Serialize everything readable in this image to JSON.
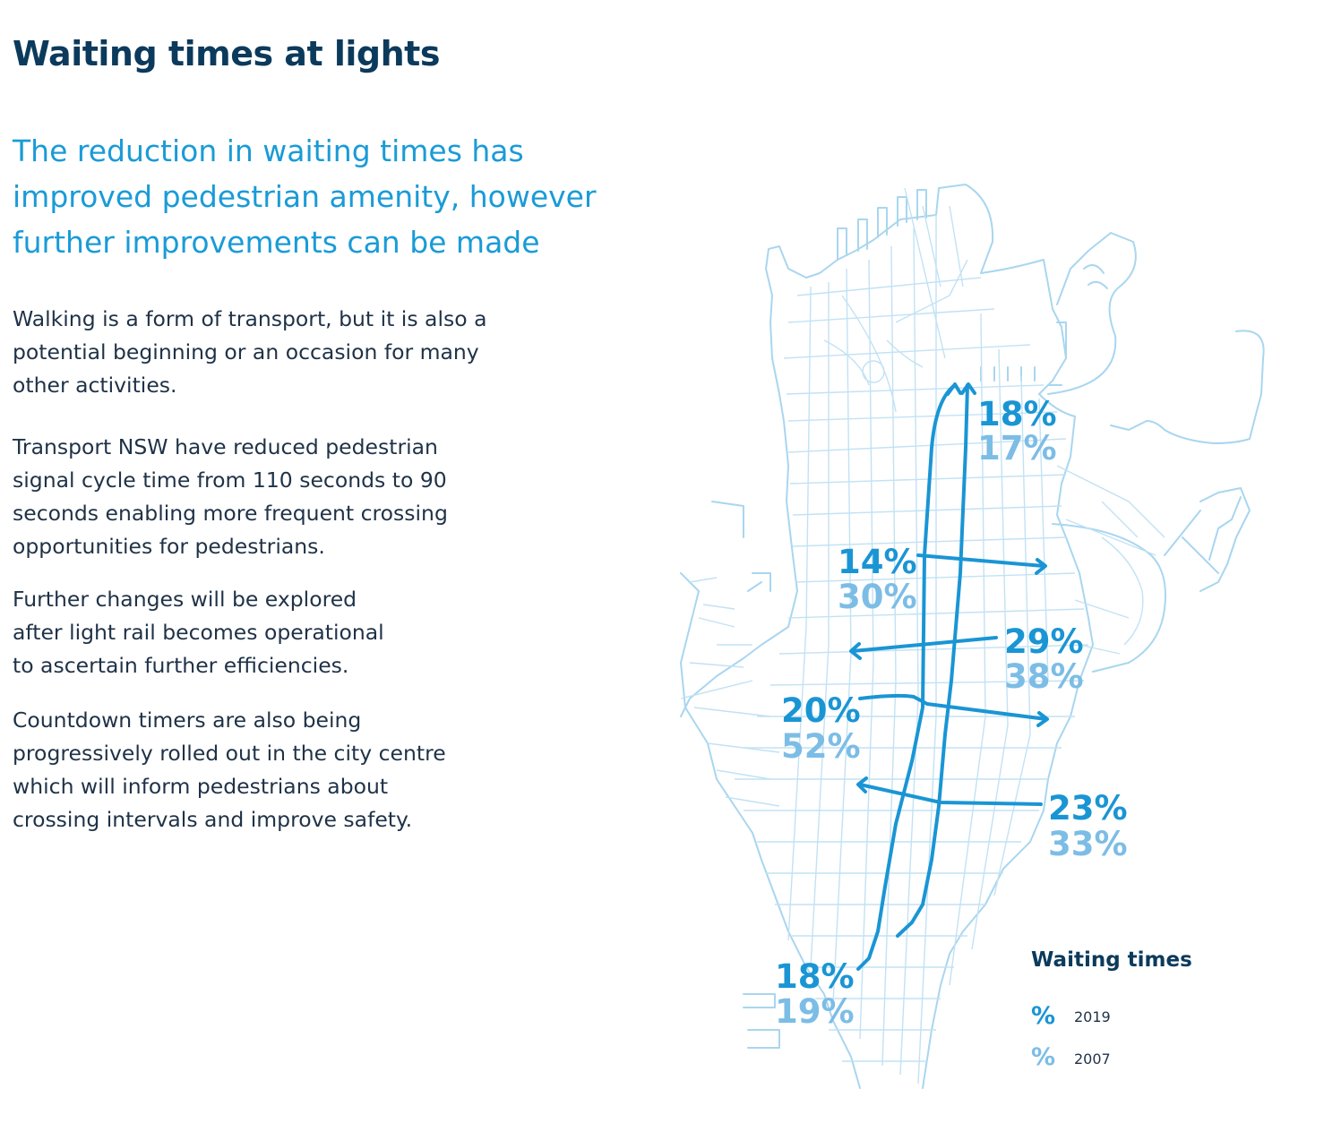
{
  "title": "Waiting times at lights",
  "lead": [
    "The reduction in waiting times has",
    "improved pedestrian amenity, however",
    "further improvements can be made"
  ],
  "paragraphs": [
    [
      "Walking is a form of transport, but it is also a",
      "potential beginning or an occasion for many",
      "other activities."
    ],
    [
      "Transport NSW have reduced pedestrian",
      "signal cycle time from 110 seconds to 90",
      "seconds enabling more frequent crossing",
      "opportunities for pedestrians."
    ],
    [
      "Further changes will be explored",
      "after light rail becomes operational",
      "to ascertain further efficiencies."
    ],
    [
      "Countdown timers are also being",
      "progressively rolled out in the city centre",
      "which will inform pedestrians about",
      "crossing intervals and improve safety."
    ]
  ],
  "map": {
    "routes": [
      {
        "id": "north",
        "pct_2019": "18%",
        "pct_2007": "17%"
      },
      {
        "id": "east-1",
        "pct_2019": "14%",
        "pct_2007": "30%"
      },
      {
        "id": "west-1",
        "pct_2019": "29%",
        "pct_2007": "38%"
      },
      {
        "id": "east-2",
        "pct_2019": "20%",
        "pct_2007": "52%"
      },
      {
        "id": "west-2",
        "pct_2019": "23%",
        "pct_2007": "33%"
      },
      {
        "id": "south",
        "pct_2019": "18%",
        "pct_2007": "19%"
      }
    ],
    "legend": {
      "title": "Waiting times",
      "items": [
        {
          "symbol": "%",
          "label": "2019",
          "color": "#1a95d4"
        },
        {
          "symbol": "%",
          "label": "2007",
          "color": "#7cbde6"
        }
      ]
    },
    "colors": {
      "route": "#1a95d4",
      "streets": "#a9d6ef",
      "heading": "#0b3a5c",
      "lead": "#1a9bd7"
    }
  }
}
